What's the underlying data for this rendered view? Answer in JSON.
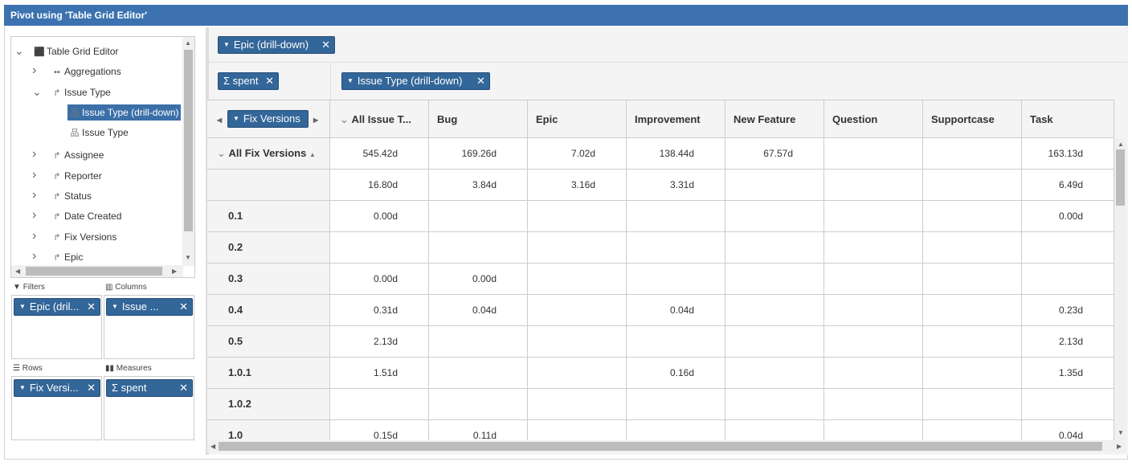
{
  "title": "Pivot using 'Table Grid Editor'",
  "tree": [
    {
      "label": "Table Grid Editor",
      "icon": "cube-icon",
      "expanded": true,
      "level": 0
    },
    {
      "label": "Aggregations",
      "icon": "aggregations-icon",
      "expanded": false,
      "level": 1
    },
    {
      "label": "Issue Type",
      "icon": "dimension-icon",
      "expanded": true,
      "level": 1
    },
    {
      "label": "Issue Type (drill-down)",
      "icon": "hierarchy-icon",
      "level": 2,
      "selected": true
    },
    {
      "label": "Issue Type",
      "icon": "hierarchy-icon",
      "level": 2
    },
    {
      "label": "Assignee",
      "icon": "dimension-icon",
      "expanded": false,
      "level": 1
    },
    {
      "label": "Reporter",
      "icon": "dimension-icon",
      "expanded": false,
      "level": 1
    },
    {
      "label": "Status",
      "icon": "dimension-icon",
      "expanded": false,
      "level": 1
    },
    {
      "label": "Date Created",
      "icon": "dimension-icon",
      "expanded": false,
      "level": 1
    },
    {
      "label": "Fix Versions",
      "icon": "dimension-icon",
      "expanded": false,
      "level": 1
    },
    {
      "label": "Epic",
      "icon": "dimension-icon",
      "expanded": false,
      "level": 1
    }
  ],
  "zones": {
    "filters": {
      "label": "Filters",
      "chip": "Epic (dril..."
    },
    "columns": {
      "label": "Columns",
      "chip": "Issue ..."
    },
    "rows": {
      "label": "Rows",
      "chip": "Fix Versi..."
    },
    "measures": {
      "label": "Measures",
      "chip": "Σ spent"
    }
  },
  "pivot": {
    "filter_chip": "Epic (drill-down)",
    "measure_chip": "Σ spent",
    "column_chip": "Issue Type (drill-down)",
    "row_chip": "Fix Versions",
    "columns": [
      "All Issue T...",
      "Bug",
      "Epic",
      "Improvement",
      "New Feature",
      "Question",
      "Supportcase",
      "Task"
    ],
    "rows": [
      {
        "label": "All Fix Versions",
        "values": [
          "545.42d",
          "169.26d",
          "7.02d",
          "138.44d",
          "67.57d",
          "",
          "",
          "163.13d"
        ]
      },
      {
        "label": "",
        "values": [
          "16.80d",
          "3.84d",
          "3.16d",
          "3.31d",
          "",
          "",
          "",
          "6.49d"
        ]
      },
      {
        "label": "0.1",
        "values": [
          "0.00d",
          "",
          "",
          "",
          "",
          "",
          "",
          "0.00d"
        ]
      },
      {
        "label": "0.2",
        "values": [
          "",
          "",
          "",
          "",
          "",
          "",
          "",
          ""
        ]
      },
      {
        "label": "0.3",
        "values": [
          "0.00d",
          "0.00d",
          "",
          "",
          "",
          "",
          "",
          ""
        ]
      },
      {
        "label": "0.4",
        "values": [
          "0.31d",
          "0.04d",
          "",
          "0.04d",
          "",
          "",
          "",
          "0.23d"
        ]
      },
      {
        "label": "0.5",
        "values": [
          "2.13d",
          "",
          "",
          "",
          "",
          "",
          "",
          "2.13d"
        ]
      },
      {
        "label": "1.0.1",
        "values": [
          "1.51d",
          "",
          "",
          "0.16d",
          "",
          "",
          "",
          "1.35d"
        ]
      },
      {
        "label": "1.0.2",
        "values": [
          "",
          "",
          "",
          "",
          "",
          "",
          "",
          ""
        ]
      },
      {
        "label": "1.0",
        "values": [
          "0.15d",
          "0.11d",
          "",
          "",
          "",
          "",
          "",
          "0.04d"
        ]
      }
    ]
  },
  "colors": {
    "header": "#3b72af",
    "chip": "#336699"
  }
}
